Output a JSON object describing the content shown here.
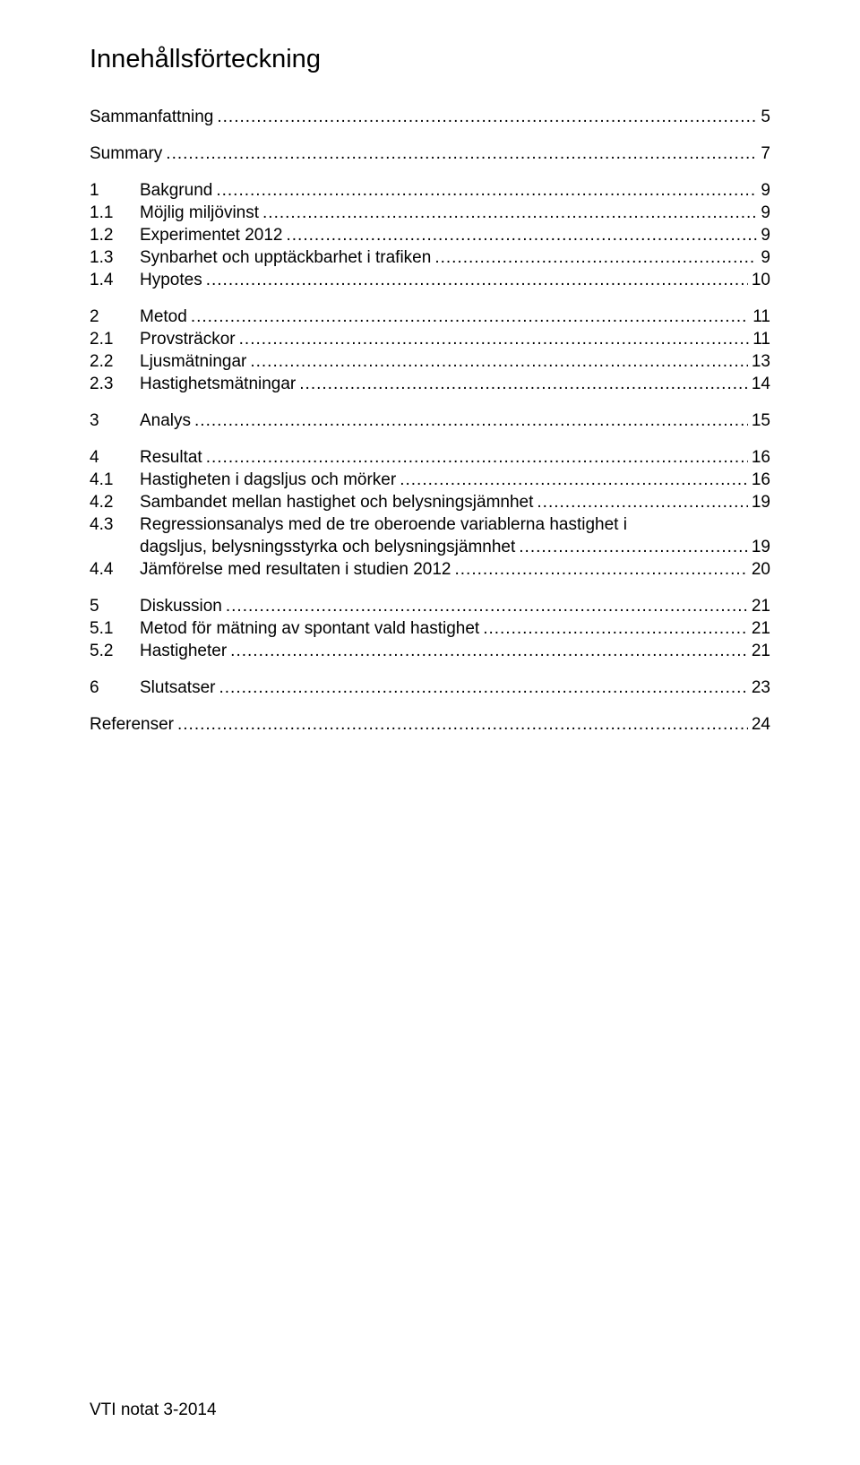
{
  "title": "Innehållsförteckning",
  "groups": [
    [
      {
        "num": "",
        "label": "Sammanfattning",
        "page": "5"
      }
    ],
    [
      {
        "num": "",
        "label": "Summary",
        "page": "7"
      }
    ],
    [
      {
        "num": "1",
        "label": "Bakgrund",
        "page": "9"
      },
      {
        "num": "1.1",
        "label": "Möjlig miljövinst",
        "page": "9"
      },
      {
        "num": "1.2",
        "label": "Experimentet 2012",
        "page": "9"
      },
      {
        "num": "1.3",
        "label": "Synbarhet och upptäckbarhet i trafiken",
        "page": "9"
      },
      {
        "num": "1.4",
        "label": "Hypotes",
        "page": "10"
      }
    ],
    [
      {
        "num": "2",
        "label": "Metod",
        "page": "11"
      },
      {
        "num": "2.1",
        "label": "Provsträckor",
        "page": "11"
      },
      {
        "num": "2.2",
        "label": "Ljusmätningar",
        "page": "13"
      },
      {
        "num": "2.3",
        "label": "Hastighetsmätningar",
        "page": "14"
      }
    ],
    [
      {
        "num": "3",
        "label": "Analys",
        "page": "15"
      }
    ],
    [
      {
        "num": "4",
        "label": "Resultat",
        "page": "16"
      },
      {
        "num": "4.1",
        "label": "Hastigheten i dagsljus och mörker",
        "page": "16"
      },
      {
        "num": "4.2",
        "label": "Sambandet mellan hastighet och belysningsjämnhet",
        "page": "19"
      },
      {
        "num": "4.3",
        "label": "Regressionsanalys med de tre oberoende variablerna hastighet i dagsljus, belysningsstyrka och belysningsjämnhet",
        "page": "19",
        "wrap": true
      },
      {
        "num": "4.4",
        "label": "Jämförelse med resultaten i studien 2012",
        "page": "20"
      }
    ],
    [
      {
        "num": "5",
        "label": "Diskussion",
        "page": "21"
      },
      {
        "num": "5.1",
        "label": "Metod för mätning av spontant vald hastighet",
        "page": "21"
      },
      {
        "num": "5.2",
        "label": "Hastigheter",
        "page": "21"
      }
    ],
    [
      {
        "num": "6",
        "label": "Slutsatser",
        "page": "23"
      }
    ],
    [
      {
        "num": "",
        "label": "Referenser",
        "page": "24"
      }
    ]
  ],
  "wrapped_entry": {
    "line1": "Regressionsanalys med de tre oberoende variablerna hastighet i",
    "line2": "dagsljus, belysningsstyrka och belysningsjämnhet"
  },
  "footer": "VTI notat 3-2014"
}
